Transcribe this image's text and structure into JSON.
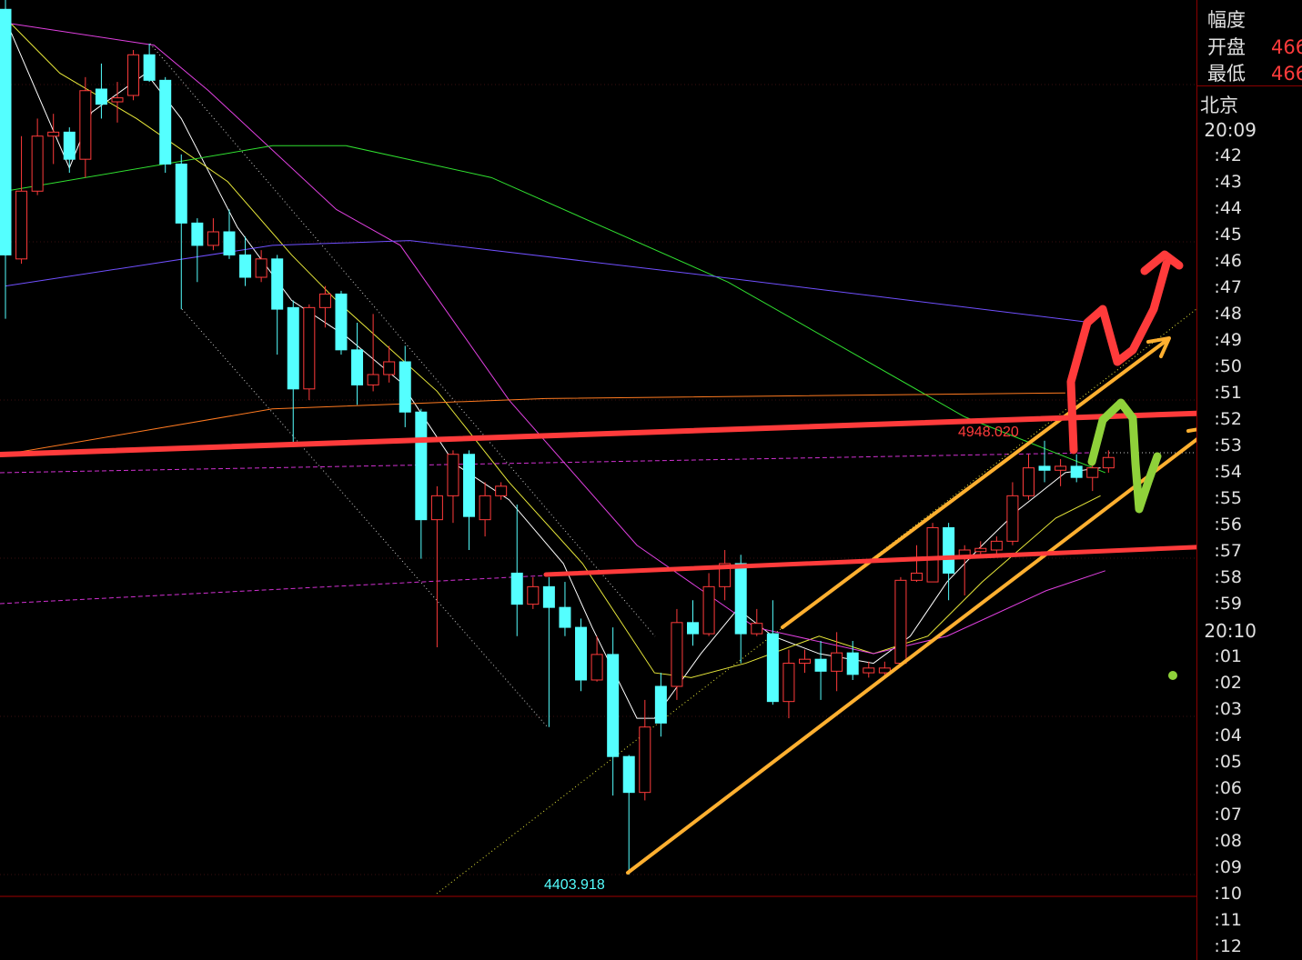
{
  "side_panel": {
    "rows": [
      {
        "label": "幅度",
        "value": ""
      },
      {
        "label": "开盘",
        "value": "466"
      },
      {
        "label": "最低",
        "value": "466"
      }
    ],
    "city": "北京",
    "times": [
      "20:09",
      ":42",
      ":43",
      ":44",
      ":45",
      ":46",
      ":47",
      ":48",
      ":49",
      ":50",
      ":51",
      ":52",
      ":53",
      ":54",
      ":55",
      ":56",
      ":57",
      ":58",
      ":59",
      "20:10",
      ":01",
      ":02",
      ":03",
      ":04",
      ":05",
      ":06",
      ":07",
      ":08",
      ":09",
      ":10",
      ":11",
      ":12"
    ]
  },
  "colors": {
    "up": "#ff3b3b",
    "down": "#54ffff",
    "background": "#000000",
    "annotation_red": "#ff3b3b",
    "annotation_orange": "#ffb030",
    "annotation_green": "#8fd13a"
  },
  "chart_data": {
    "type": "candlestick",
    "ylim": [
      4380,
      5500
    ],
    "high_label": "4948.020",
    "low_label": "4403.918",
    "candles": [
      [
        5489,
        5501,
        5101,
        5181
      ],
      [
        5176,
        5330,
        5170,
        5261
      ],
      [
        5261,
        5352,
        5256,
        5330
      ],
      [
        5330,
        5358,
        5295,
        5335
      ],
      [
        5335,
        5341,
        5284,
        5301
      ],
      [
        5301,
        5404,
        5278,
        5387
      ],
      [
        5389,
        5421,
        5352,
        5370
      ],
      [
        5373,
        5398,
        5347,
        5378
      ],
      [
        5381,
        5438,
        5375,
        5432
      ],
      [
        5432,
        5446,
        5398,
        5400
      ],
      [
        5400,
        5404,
        5284,
        5295
      ],
      [
        5295,
        5307,
        5113,
        5221
      ],
      [
        5221,
        5227,
        5147,
        5193
      ],
      [
        5193,
        5227,
        5187,
        5210
      ],
      [
        5210,
        5238,
        5176,
        5181
      ],
      [
        5181,
        5204,
        5142,
        5153
      ],
      [
        5153,
        5187,
        5147,
        5176
      ],
      [
        5176,
        5181,
        5056,
        5113
      ],
      [
        5115,
        5124,
        4942,
        5013
      ],
      [
        5013,
        5119,
        4999,
        5115
      ],
      [
        5115,
        5142,
        5090,
        5132
      ],
      [
        5132,
        5136,
        5056,
        5062
      ],
      [
        5062,
        5096,
        4993,
        5018
      ],
      [
        5018,
        5107,
        5010,
        5031
      ],
      [
        5031,
        5067,
        5021,
        5047
      ],
      [
        5047,
        5067,
        4965,
        4984
      ],
      [
        4984,
        4988,
        4800,
        4849
      ],
      [
        4849,
        4891,
        4689,
        4879
      ],
      [
        4879,
        4936,
        4845,
        4931
      ],
      [
        4931,
        4936,
        4811,
        4853
      ],
      [
        4849,
        4896,
        4828,
        4879
      ],
      [
        4879,
        4896,
        4874,
        4891
      ],
      [
        4782,
        4868,
        4703,
        4743
      ],
      [
        4743,
        4777,
        4737,
        4765
      ],
      [
        4765,
        4777,
        4589,
        4739
      ],
      [
        4739,
        4771,
        4703,
        4714
      ],
      [
        4714,
        4725,
        4634,
        4648
      ],
      [
        4648,
        4703,
        4646,
        4680
      ],
      [
        4680,
        4714,
        4503,
        4552
      ],
      [
        4552,
        4554,
        4403.918,
        4507
      ],
      [
        4507,
        4623,
        4497,
        4589
      ],
      [
        4640,
        4657,
        4577,
        4594
      ],
      [
        4640,
        4737,
        4623,
        4720
      ],
      [
        4720,
        4748,
        4691,
        4706
      ],
      [
        4706,
        4782,
        4703,
        4765
      ],
      [
        4765,
        4811,
        4748,
        4794
      ],
      [
        4794,
        4805,
        4669,
        4706
      ],
      [
        4706,
        4737,
        4703,
        4719
      ],
      [
        4706,
        4748,
        4617,
        4621
      ],
      [
        4621,
        4686,
        4600,
        4669
      ],
      [
        4669,
        4686,
        4657,
        4674
      ],
      [
        4674,
        4697,
        4623,
        4659
      ],
      [
        4659,
        4708,
        4634,
        4682
      ],
      [
        4682,
        4697,
        4648,
        4655
      ],
      [
        4657,
        4671,
        4651,
        4663
      ],
      [
        4657,
        4671,
        4651,
        4663
      ],
      [
        4669,
        4777,
        4666,
        4773
      ],
      [
        4773,
        4817,
        4771,
        4782
      ],
      [
        4771,
        4845,
        4771,
        4839
      ],
      [
        4839,
        4845,
        4748,
        4782
      ],
      [
        4800,
        4817,
        4754,
        4811
      ],
      [
        4809,
        4822,
        4805,
        4813
      ],
      [
        4811,
        4828,
        4805,
        4822
      ],
      [
        4822,
        4896,
        4817,
        4879
      ],
      [
        4879,
        4931,
        4874,
        4914
      ],
      [
        4916,
        4948.02,
        4896,
        4911
      ],
      [
        4911,
        4925,
        4891,
        4916
      ],
      [
        4916,
        4931,
        4896,
        4902
      ],
      [
        4902,
        4939,
        4885,
        4914
      ],
      [
        4914,
        4936,
        4908,
        4927
      ]
    ],
    "candle_fields": [
      "open",
      "high",
      "low",
      "close"
    ],
    "moving_averages": [
      {
        "color": "#ffffff",
        "points": [
          [
            1.2,
            5467
          ],
          [
            5,
            5290
          ],
          [
            6.4,
            5360
          ],
          [
            9.8,
            5409
          ],
          [
            12,
            5352
          ],
          [
            15.5,
            5216
          ],
          [
            18.9,
            5124
          ],
          [
            22.3,
            5079
          ],
          [
            25.7,
            5022
          ],
          [
            29.1,
            4919
          ],
          [
            32.5,
            4874
          ],
          [
            35.9,
            4794
          ],
          [
            37.7,
            4714
          ],
          [
            40.5,
            4600
          ],
          [
            41.6,
            4600
          ],
          [
            44.5,
            4681
          ],
          [
            46.8,
            4737
          ],
          [
            49,
            4703
          ],
          [
            51.9,
            4681
          ],
          [
            55.3,
            4669
          ],
          [
            57.6,
            4703
          ],
          [
            59.9,
            4771
          ],
          [
            62.1,
            4817
          ],
          [
            64.4,
            4862
          ],
          [
            67.3,
            4908
          ],
          [
            69.5,
            4914
          ]
        ]
      },
      {
        "color": "#e8e83a",
        "points": [
          [
            1,
            5478
          ],
          [
            4.4,
            5409
          ],
          [
            9.2,
            5352
          ],
          [
            14.9,
            5273
          ],
          [
            18.9,
            5181
          ],
          [
            21.7,
            5124
          ],
          [
            28,
            5010
          ],
          [
            32.5,
            4896
          ],
          [
            37.1,
            4794
          ],
          [
            41.6,
            4657
          ],
          [
            43.9,
            4651
          ],
          [
            47.3,
            4669
          ],
          [
            51.9,
            4703
          ],
          [
            55.3,
            4681
          ],
          [
            58.7,
            4703
          ],
          [
            62.1,
            4771
          ],
          [
            66.7,
            4851
          ],
          [
            69.5,
            4879
          ]
        ]
      },
      {
        "color": "#e040e0",
        "points": [
          [
            1,
            5472
          ],
          [
            10.3,
            5444
          ],
          [
            13.7,
            5387
          ],
          [
            21.7,
            5238
          ],
          [
            25.7,
            5193
          ],
          [
            32.5,
            4999
          ],
          [
            40.5,
            4817
          ],
          [
            47.9,
            4714
          ],
          [
            55.3,
            4681
          ],
          [
            59.9,
            4703
          ],
          [
            66.1,
            4760
          ],
          [
            69.8,
            4785
          ]
        ]
      },
      {
        "color": "#30e030",
        "points": [
          [
            1,
            5261
          ],
          [
            17.7,
            5318
          ],
          [
            22.3,
            5318
          ],
          [
            31.4,
            5278
          ],
          [
            46.2,
            5147
          ],
          [
            61,
            4978
          ],
          [
            69.8,
            4908
          ]
        ]
      },
      {
        "color": "#7050ff",
        "points": [
          [
            1,
            5142
          ],
          [
            17.7,
            5193
          ],
          [
            26.3,
            5199
          ],
          [
            43.3,
            5159
          ],
          [
            69,
            5096
          ]
        ]
      },
      {
        "color": "#ff7a20",
        "points": [
          [
            1,
            4931
          ],
          [
            17.7,
            4988
          ],
          [
            34.8,
            5001
          ],
          [
            67.3,
            5008
          ]
        ]
      }
    ]
  }
}
